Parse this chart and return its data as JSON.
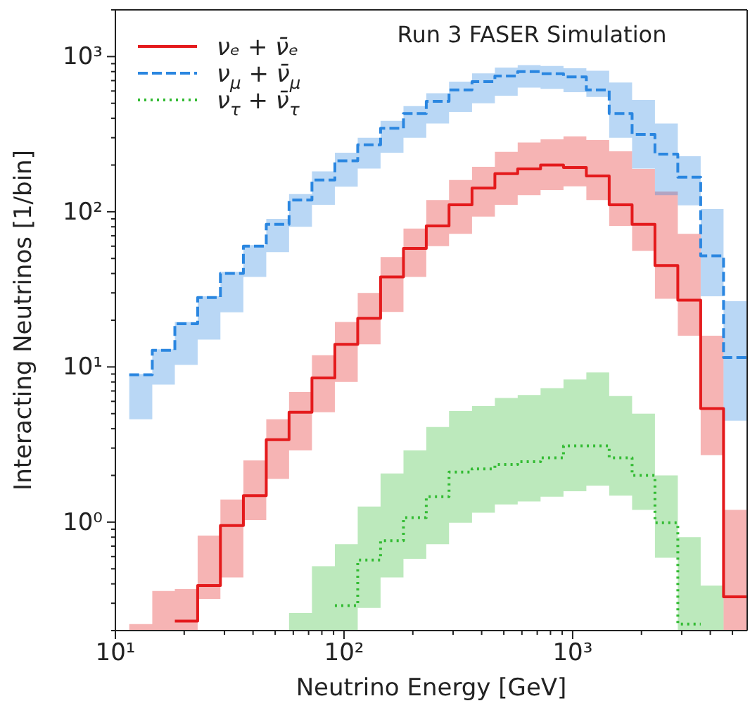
{
  "chart_data": {
    "type": "step",
    "title": "Run 3 FASER Simulation",
    "xlabel": "Neutrino Energy [GeV]",
    "ylabel": "Interacting Neutrinos [1/bin]",
    "log": "xy",
    "legend": "top left",
    "grid": false,
    "marker": "none",
    "xlim": [
      10,
      5800
    ],
    "ylim": [
      0.2,
      2000
    ],
    "xticks": [
      {
        "value": 10,
        "label": "10¹"
      },
      {
        "value": 20,
        "label": null
      },
      {
        "value": 30,
        "label": null
      },
      {
        "value": 40,
        "label": null
      },
      {
        "value": 50,
        "label": null
      },
      {
        "value": 60,
        "label": null
      },
      {
        "value": 70,
        "label": null
      },
      {
        "value": 80,
        "label": null
      },
      {
        "value": 90,
        "label": null
      },
      {
        "value": 100,
        "label": "10²"
      },
      {
        "value": 200,
        "label": null
      },
      {
        "value": 300,
        "label": null
      },
      {
        "value": 400,
        "label": null
      },
      {
        "value": 500,
        "label": null
      },
      {
        "value": 600,
        "label": null
      },
      {
        "value": 700,
        "label": null
      },
      {
        "value": 800,
        "label": null
      },
      {
        "value": 900,
        "label": null
      },
      {
        "value": 1000,
        "label": "10³"
      },
      {
        "value": 2000,
        "label": null
      },
      {
        "value": 3000,
        "label": null
      },
      {
        "value": 4000,
        "label": null
      },
      {
        "value": 5000,
        "label": null
      }
    ],
    "yticks": [
      {
        "value": 0.2,
        "label": null
      },
      {
        "value": 0.3,
        "label": null
      },
      {
        "value": 0.4,
        "label": null
      },
      {
        "value": 0.5,
        "label": null
      },
      {
        "value": 0.6,
        "label": null
      },
      {
        "value": 0.7,
        "label": null
      },
      {
        "value": 0.8,
        "label": null
      },
      {
        "value": 0.9,
        "label": null
      },
      {
        "value": 1,
        "label": "10⁰"
      },
      {
        "value": 2,
        "label": null
      },
      {
        "value": 3,
        "label": null
      },
      {
        "value": 4,
        "label": null
      },
      {
        "value": 5,
        "label": null
      },
      {
        "value": 6,
        "label": null
      },
      {
        "value": 7,
        "label": null
      },
      {
        "value": 8,
        "label": null
      },
      {
        "value": 9,
        "label": null
      },
      {
        "value": 10,
        "label": "10¹"
      },
      {
        "value": 20,
        "label": null
      },
      {
        "value": 30,
        "label": null
      },
      {
        "value": 40,
        "label": null
      },
      {
        "value": 50,
        "label": null
      },
      {
        "value": 60,
        "label": null
      },
      {
        "value": 70,
        "label": null
      },
      {
        "value": 80,
        "label": null
      },
      {
        "value": 90,
        "label": null
      },
      {
        "value": 100,
        "label": "10²"
      },
      {
        "value": 200,
        "label": null
      },
      {
        "value": 300,
        "label": null
      },
      {
        "value": 400,
        "label": null
      },
      {
        "value": 500,
        "label": null
      },
      {
        "value": 600,
        "label": null
      },
      {
        "value": 700,
        "label": null
      },
      {
        "value": 800,
        "label": null
      },
      {
        "value": 900,
        "label": null
      },
      {
        "value": 1000,
        "label": "10³"
      },
      {
        "value": 2000,
        "label": null
      }
    ],
    "x": [
      11.5,
      14.5,
      18.2,
      22.9,
      28.8,
      36.3,
      45.7,
      57.5,
      72.4,
      91.2,
      114.8,
      144.5,
      182,
      229,
      288,
      363,
      457,
      575,
      724,
      912,
      1148,
      1445,
      1820,
      2291,
      2884,
      3631,
      4571,
      5754
    ],
    "series": [
      {
        "name": "νₑ + ν̄ₑ",
        "color": "#e41a1c",
        "line_style": "solid",
        "values": [
          null,
          null,
          0.23,
          0.39,
          0.95,
          1.48,
          3.4,
          5.1,
          8.5,
          14,
          20.6,
          38,
          58,
          81,
          111,
          142,
          176,
          189,
          200,
          193,
          170,
          111,
          83,
          45,
          26.9,
          5.4,
          0.33,
          0.33
        ],
        "lower": [
          0.2,
          0.2,
          0.2,
          0.32,
          0.44,
          1.03,
          1.9,
          2.9,
          5.1,
          8,
          14,
          22.6,
          38,
          60,
          72,
          93,
          111,
          128,
          138,
          146,
          119,
          81,
          56,
          27.5,
          15.9,
          2.7,
          0.2,
          0.2
        ],
        "upper": [
          0.22,
          0.36,
          0.37,
          0.82,
          1.4,
          2.5,
          4.6,
          6.9,
          11.9,
          19.5,
          30,
          51,
          78,
          119,
          160,
          195,
          243,
          279,
          293,
          306,
          290,
          245,
          189,
          135,
          72,
          15.9,
          1.2,
          1.2
        ]
      },
      {
        "name": "ν$_{μ}$ + ν̄$_{μ}$",
        "color": "#2a86e0",
        "line_style": "dashed",
        "values": [
          8.9,
          12.8,
          19,
          28,
          40,
          60,
          83,
          119,
          160,
          213,
          270,
          345,
          430,
          515,
          610,
          690,
          750,
          800,
          775,
          740,
          610,
          430,
          315,
          235,
          167,
          52,
          11.5,
          11.5
        ],
        "lower": [
          4.6,
          7.7,
          10.3,
          15,
          22.5,
          38,
          55,
          80,
          111,
          145,
          190,
          240,
          300,
          370,
          440,
          500,
          560,
          630,
          620,
          590,
          550,
          300,
          190,
          128,
          110,
          28.5,
          4.5,
          4.5
        ],
        "upper": [
          9,
          13,
          19.5,
          28.5,
          41,
          61,
          90,
          130,
          182,
          240,
          300,
          385,
          480,
          580,
          690,
          780,
          850,
          880,
          870,
          840,
          810,
          680,
          525,
          370,
          228,
          104,
          26.5,
          26.5
        ]
      },
      {
        "name": "ν$_{τ}$ + ν̄$_{τ}$",
        "color": "#33bb33",
        "line_style": "dotted",
        "values": [
          null,
          null,
          null,
          null,
          null,
          null,
          null,
          null,
          null,
          0.29,
          0.57,
          0.76,
          1.07,
          1.46,
          2.1,
          2.2,
          2.35,
          2.45,
          2.6,
          3.1,
          3.1,
          2.6,
          2.0,
          0.99,
          0.22,
          0.22,
          null,
          null
        ],
        "lower": [
          null,
          null,
          null,
          null,
          null,
          null,
          null,
          0.2,
          0.2,
          0.2,
          0.28,
          0.44,
          0.58,
          0.72,
          0.99,
          1.15,
          1.3,
          1.36,
          1.46,
          1.58,
          1.72,
          1.48,
          1.2,
          0.59,
          0.2,
          0.2,
          0.2,
          null
        ],
        "upper": [
          null,
          null,
          null,
          null,
          null,
          null,
          null,
          0.26,
          0.52,
          0.72,
          1.26,
          2.06,
          2.9,
          4.1,
          5.2,
          5.6,
          6.3,
          6.6,
          7.3,
          8.3,
          9.2,
          6.5,
          5.0,
          2.0,
          0.8,
          0.39,
          0.39,
          null
        ]
      }
    ]
  }
}
